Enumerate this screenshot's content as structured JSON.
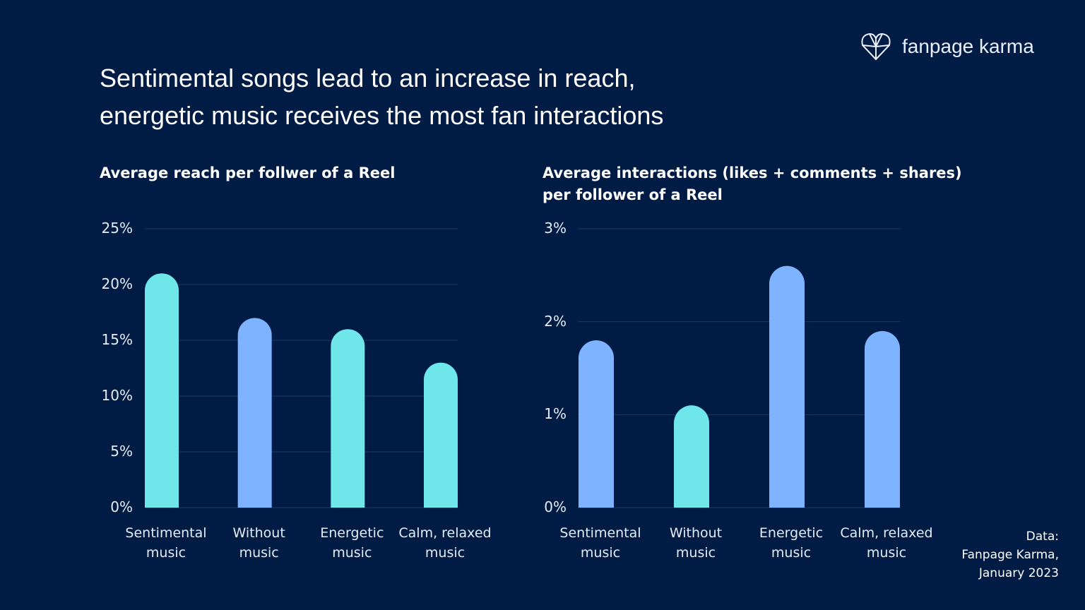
{
  "title": "Sentimental songs lead to an increase in reach,\nenergetic music receives the most fan interactions",
  "brand": "fanpage karma",
  "source": "Data:\nFanpage Karma,\nJanuary 2023",
  "chart_data": [
    {
      "type": "bar",
      "title": "Average reach per follwer of a Reel",
      "categories": [
        "Sentimental\nmusic",
        "Without\nmusic",
        "Energetic\nmusic",
        "Calm, relaxed\nmusic"
      ],
      "values": [
        21,
        17,
        16,
        13
      ],
      "colors": [
        "#6ee6ea",
        "#7eb3ff",
        "#6ee6ea",
        "#6ee6ea"
      ],
      "ylim": [
        0,
        25
      ],
      "yticks": [
        {
          "value": 0,
          "label": "0%"
        },
        {
          "value": 5,
          "label": "5%"
        },
        {
          "value": 10,
          "label": "10%"
        },
        {
          "value": 15,
          "label": "15%"
        },
        {
          "value": 20,
          "label": "20%"
        },
        {
          "value": 25,
          "label": "25%"
        }
      ],
      "grid": true
    },
    {
      "type": "bar",
      "title": "Average interactions (likes + comments + shares)\nper follower of a Reel",
      "categories": [
        "Sentimental\nmusic",
        "Without\nmusic",
        "Energetic\nmusic",
        "Calm, relaxed\nmusic"
      ],
      "values": [
        1.8,
        1.1,
        2.6,
        1.9
      ],
      "colors": [
        "#7eb3ff",
        "#6ee6ea",
        "#7eb3ff",
        "#7eb3ff"
      ],
      "ylim": [
        0,
        3
      ],
      "yticks": [
        {
          "value": 0,
          "label": "0%"
        },
        {
          "value": 1,
          "label": "1%"
        },
        {
          "value": 2,
          "label": "2%"
        },
        {
          "value": 3,
          "label": "3%"
        }
      ],
      "grid": true
    }
  ]
}
